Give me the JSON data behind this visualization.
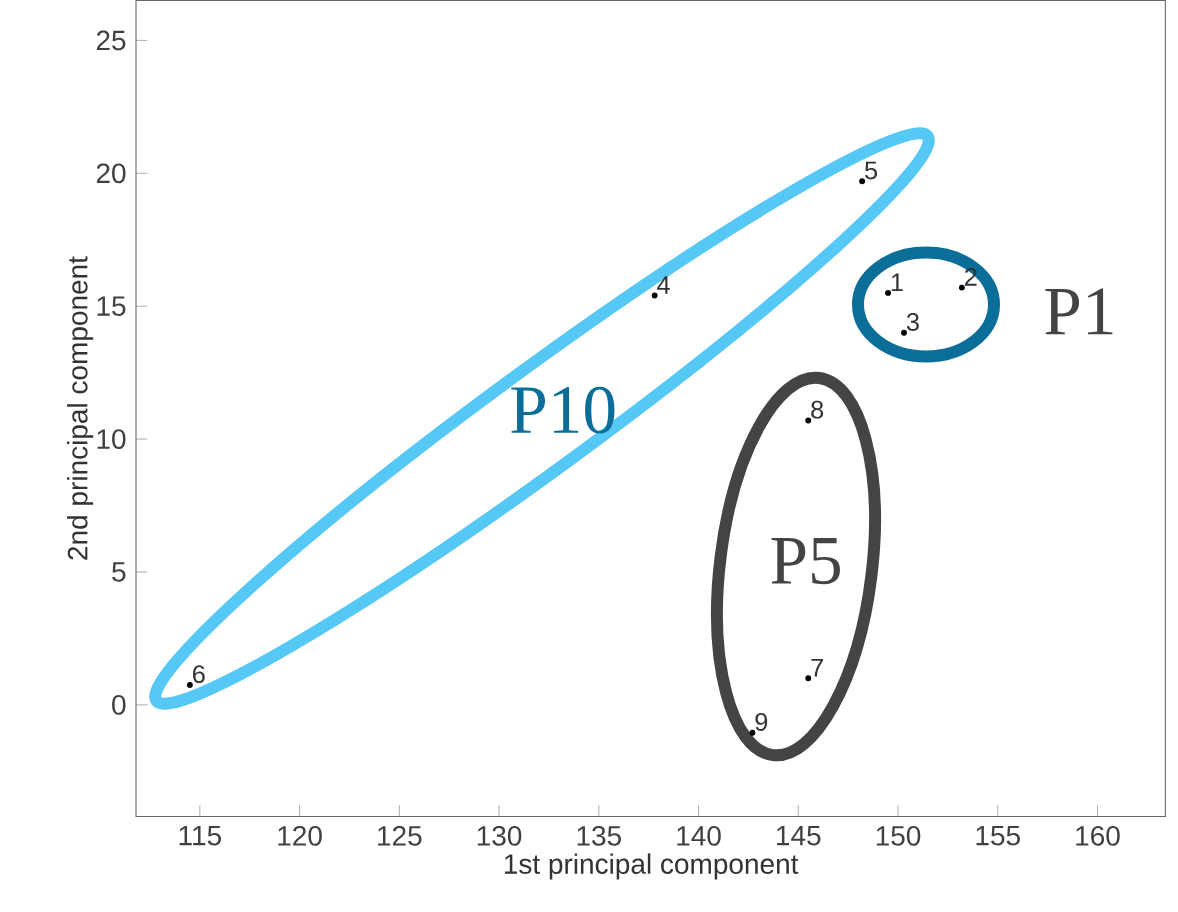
{
  "chart_data": {
    "type": "scatter",
    "xlabel": "1st principal component",
    "ylabel": "2nd principal component",
    "xlim": [
      111.8,
      163.4
    ],
    "ylim": [
      -4.2,
      26.5
    ],
    "xticks": [
      115,
      120,
      125,
      130,
      135,
      140,
      145,
      150,
      155,
      160
    ],
    "yticks": [
      0,
      5,
      10,
      15,
      20,
      25
    ],
    "series": [
      {
        "color": "#000000",
        "marker": "circle",
        "x": [
          149.5,
          153.2,
          150.3,
          137.8,
          148.2,
          114.5,
          145.5,
          145.5,
          142.7
        ],
        "values": [
          15.5,
          15.7,
          14.0,
          15.4,
          19.7,
          0.75,
          1.0,
          10.7,
          -1.05
        ]
      }
    ],
    "annotations": [
      {
        "text": "1",
        "x": 149.5,
        "y": 15.5
      },
      {
        "text": "2",
        "x": 153.2,
        "y": 15.7
      },
      {
        "text": "3",
        "x": 150.3,
        "y": 14.0
      },
      {
        "text": "4",
        "x": 137.8,
        "y": 15.4
      },
      {
        "text": "5",
        "x": 148.2,
        "y": 19.7
      },
      {
        "text": "6",
        "x": 114.5,
        "y": 0.75
      },
      {
        "text": "7",
        "x": 145.5,
        "y": 1.0
      },
      {
        "text": "8",
        "x": 145.5,
        "y": 10.7
      },
      {
        "text": "9",
        "x": 142.7,
        "y": -1.05
      },
      "P10",
      "P1",
      "P5"
    ]
  }
}
